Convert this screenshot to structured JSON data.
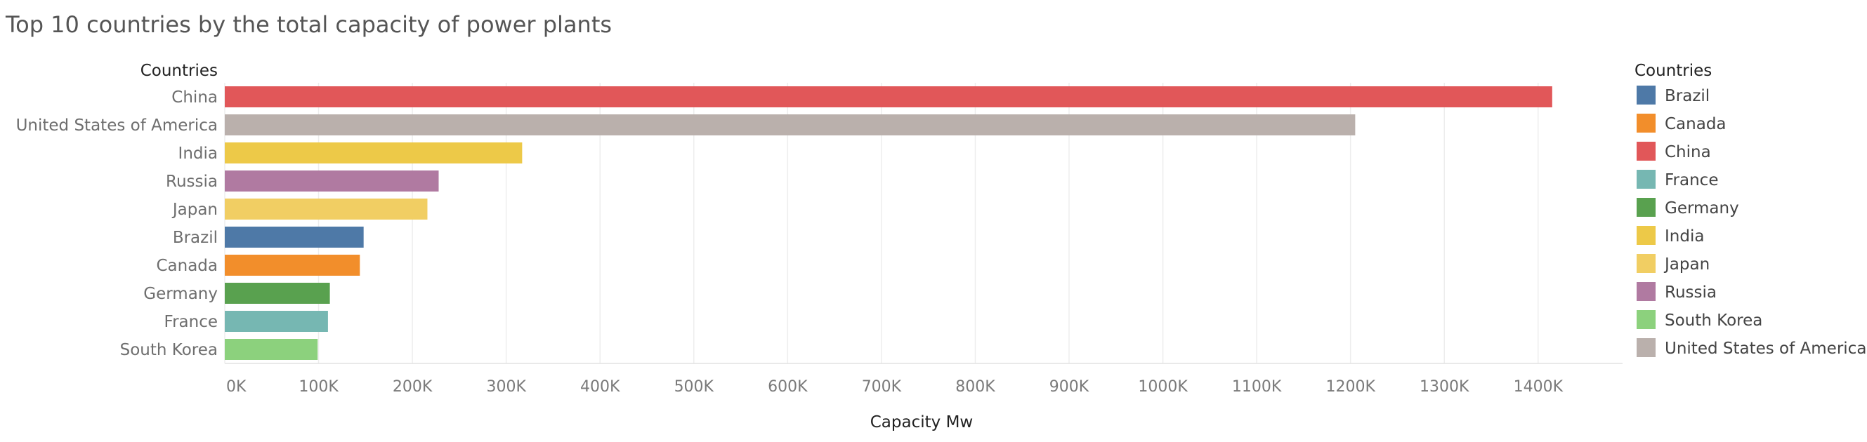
{
  "chart_data": {
    "type": "bar",
    "orientation": "horizontal",
    "title": "Top 10 countries by the total capacity of power plants",
    "y_header": "Countries",
    "xlabel": "Capacity Mw",
    "categories": [
      "China",
      "United States of America",
      "India",
      "Russia",
      "Japan",
      "Brazil",
      "Canada",
      "Germany",
      "France",
      "South Korea"
    ],
    "values": [
      1415000,
      1205000,
      317000,
      228000,
      216000,
      148000,
      144000,
      112000,
      110000,
      99000
    ],
    "bar_colors": [
      "#e15759",
      "#bab0ac",
      "#edc948",
      "#b07aa1",
      "#f1ce63",
      "#4e79a7",
      "#f28e2b",
      "#59a14f",
      "#76b7b2",
      "#8cd17d"
    ],
    "xlim": [
      0,
      1490000
    ],
    "xticks": [
      0,
      100000,
      200000,
      300000,
      400000,
      500000,
      600000,
      700000,
      800000,
      900000,
      1000000,
      1100000,
      1200000,
      1300000,
      1400000
    ],
    "xtick_labels": [
      "0K",
      "100K",
      "200K",
      "300K",
      "400K",
      "500K",
      "600K",
      "700K",
      "800K",
      "900K",
      "1000K",
      "1100K",
      "1200K",
      "1300K",
      "1400K"
    ],
    "grid": true,
    "legend": {
      "title": "Countries",
      "position": "right",
      "items": [
        {
          "label": "Brazil",
          "color": "#4e79a7"
        },
        {
          "label": "Canada",
          "color": "#f28e2b"
        },
        {
          "label": "China",
          "color": "#e15759"
        },
        {
          "label": "France",
          "color": "#76b7b2"
        },
        {
          "label": "Germany",
          "color": "#59a14f"
        },
        {
          "label": "India",
          "color": "#edc948"
        },
        {
          "label": "Japan",
          "color": "#f1ce63"
        },
        {
          "label": "Russia",
          "color": "#b07aa1"
        },
        {
          "label": "South Korea",
          "color": "#8cd17d"
        },
        {
          "label": "United States of America",
          "color": "#bab0ac"
        }
      ]
    }
  }
}
